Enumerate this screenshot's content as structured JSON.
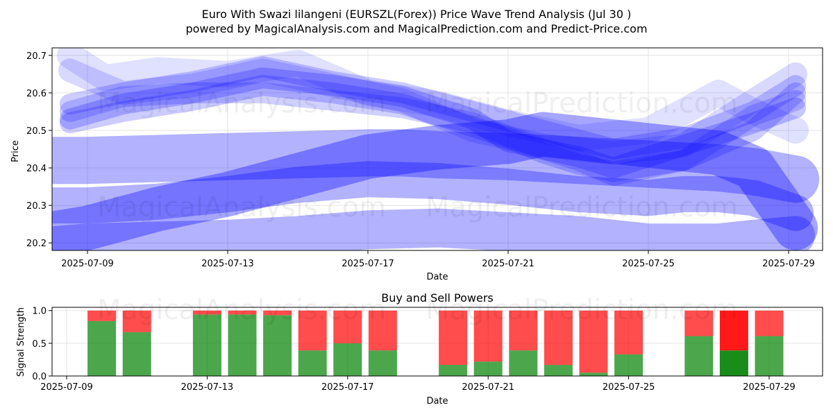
{
  "title": {
    "line1": "Euro With Swazi lilangeni (EURSZL(Forex)) Price Wave Trend Analysis (Jul 30 )",
    "line2": "powered by MagicalAnalysis.com and MagicalPrediction.com and Predict-Price.com"
  },
  "watermarks": [
    "MagicalAnalysis.com",
    "MagicalPrediction.com"
  ],
  "colors": {
    "wave": "#0000ff",
    "buy": "#008000",
    "sell": "#ff0000",
    "grid": "#dddddd"
  },
  "chart_data": [
    {
      "type": "line",
      "name": "price-wave",
      "xlabel": "Date",
      "ylabel": "Price",
      "ylim": [
        20.18,
        20.72
      ],
      "yticks": [
        20.2,
        20.3,
        20.4,
        20.5,
        20.6,
        20.7
      ],
      "xticks": [
        "2025-07-09",
        "2025-07-13",
        "2025-07-17",
        "2025-07-21",
        "2025-07-25",
        "2025-07-29"
      ],
      "grid": true,
      "series": [
        {
          "name": "wave-1",
          "x": [
            -1.3,
            0,
            2,
            4,
            6,
            8,
            9,
            10,
            12,
            14,
            16,
            17,
            18,
            19,
            20.2
          ],
          "values": [
            20.42,
            20.42,
            20.425,
            20.43,
            20.435,
            20.44,
            20.44,
            20.435,
            20.43,
            20.42,
            20.41,
            20.405,
            20.4,
            20.39,
            20.37
          ]
        },
        {
          "name": "wave-2",
          "x": [
            -1.3,
            0,
            2,
            4,
            6,
            8,
            10,
            12,
            14,
            16,
            17,
            18,
            19,
            20.2
          ],
          "values": [
            20.3,
            20.3,
            20.31,
            20.33,
            20.355,
            20.37,
            20.365,
            20.35,
            20.33,
            20.32,
            20.33,
            20.33,
            20.32,
            20.28
          ]
        },
        {
          "name": "wave-3",
          "x": [
            -1.3,
            0,
            2,
            4,
            6,
            8,
            10,
            12,
            14,
            16,
            18,
            19,
            20.2
          ],
          "values": [
            20.19,
            20.2,
            20.205,
            20.21,
            20.22,
            20.235,
            20.24,
            20.23,
            20.22,
            20.2,
            20.2,
            20.21,
            20.22
          ]
        },
        {
          "name": "wave-4",
          "x": [
            -1.3,
            0,
            2,
            4,
            6,
            8,
            10,
            12,
            13,
            14,
            16,
            18,
            19,
            20.2
          ],
          "values": [
            20.22,
            20.24,
            20.29,
            20.33,
            20.38,
            20.43,
            20.455,
            20.47,
            20.49,
            20.48,
            20.46,
            20.44,
            20.4,
            20.24
          ]
        },
        {
          "name": "wave-5",
          "x": [
            -0.5,
            1,
            3,
            5,
            7,
            9,
            11,
            12,
            14,
            15,
            17,
            19,
            20.2
          ],
          "values": [
            20.53,
            20.57,
            20.6,
            20.64,
            20.62,
            20.59,
            20.53,
            20.47,
            20.43,
            20.4,
            20.46,
            20.52,
            20.56
          ]
        },
        {
          "name": "wave-6",
          "x": [
            -0.5,
            1,
            3,
            5,
            7,
            9,
            11,
            12,
            13,
            14,
            15,
            17,
            19,
            20.2
          ],
          "values": [
            20.52,
            20.55,
            20.58,
            20.62,
            20.6,
            20.57,
            20.51,
            20.48,
            20.44,
            20.41,
            20.39,
            20.42,
            20.5,
            20.6
          ]
        },
        {
          "name": "wave-7",
          "x": [
            -0.5,
            1,
            3,
            5,
            7,
            9,
            11,
            13,
            15,
            17,
            19,
            20.2
          ],
          "values": [
            20.66,
            20.6,
            20.62,
            20.66,
            20.62,
            20.58,
            20.5,
            20.46,
            20.44,
            20.46,
            20.58,
            20.65
          ]
        },
        {
          "name": "wave-8",
          "x": [
            -0.5,
            0.5,
            2,
            4,
            6,
            8,
            10,
            12,
            14,
            16,
            18,
            19,
            20.2
          ],
          "values": [
            20.7,
            20.64,
            20.66,
            20.65,
            20.68,
            20.6,
            20.57,
            20.52,
            20.48,
            20.5,
            20.6,
            20.55,
            20.5
          ]
        },
        {
          "name": "wave-9",
          "x": [
            -0.5,
            1,
            3,
            5,
            7,
            9,
            11,
            13,
            14,
            15,
            17,
            19,
            20.2
          ],
          "values": [
            20.55,
            20.59,
            20.6,
            20.6,
            20.58,
            20.56,
            20.52,
            20.45,
            20.42,
            20.38,
            20.42,
            20.54,
            20.58
          ]
        },
        {
          "name": "wave-10",
          "x": [
            -0.5,
            1,
            3,
            5,
            7,
            9,
            11,
            13,
            15,
            17,
            19,
            20.2
          ],
          "values": [
            20.57,
            20.6,
            20.63,
            20.67,
            20.63,
            20.6,
            20.55,
            20.5,
            20.45,
            20.48,
            20.55,
            20.62
          ]
        }
      ]
    },
    {
      "type": "bar",
      "name": "signal-strength",
      "title": "Buy and Sell Powers",
      "xlabel": "Date",
      "ylabel": "Signal Strength",
      "ylim": [
        0,
        1.05
      ],
      "yticks": [
        "0.0",
        "0.5",
        "1.0"
      ],
      "xticks": [
        "2025-07-09",
        "2025-07-13",
        "2025-07-17",
        "2025-07-21",
        "2025-07-25",
        "2025-07-29"
      ],
      "categories": [
        "2025-07-10",
        "2025-07-11",
        "2025-07-13",
        "2025-07-14",
        "2025-07-15",
        "2025-07-16",
        "2025-07-17",
        "2025-07-18",
        "2025-07-20",
        "2025-07-21",
        "2025-07-22",
        "2025-07-23",
        "2025-07-24",
        "2025-07-25",
        "2025-07-27",
        "2025-07-28",
        "2025-07-29"
      ],
      "series": [
        {
          "name": "Buy",
          "values": [
            0.84,
            0.67,
            0.94,
            0.94,
            0.93,
            0.39,
            0.5,
            0.39,
            0.17,
            0.22,
            0.39,
            0.17,
            0.05,
            0.33,
            0.61,
            0.39,
            0.61
          ]
        },
        {
          "name": "Sell",
          "values": [
            0.16,
            0.33,
            0.06,
            0.06,
            0.07,
            0.61,
            0.5,
            0.61,
            0.83,
            0.78,
            0.61,
            0.83,
            0.95,
            0.67,
            0.39,
            0.61,
            0.39
          ]
        }
      ],
      "highlight_index": 15
    }
  ]
}
